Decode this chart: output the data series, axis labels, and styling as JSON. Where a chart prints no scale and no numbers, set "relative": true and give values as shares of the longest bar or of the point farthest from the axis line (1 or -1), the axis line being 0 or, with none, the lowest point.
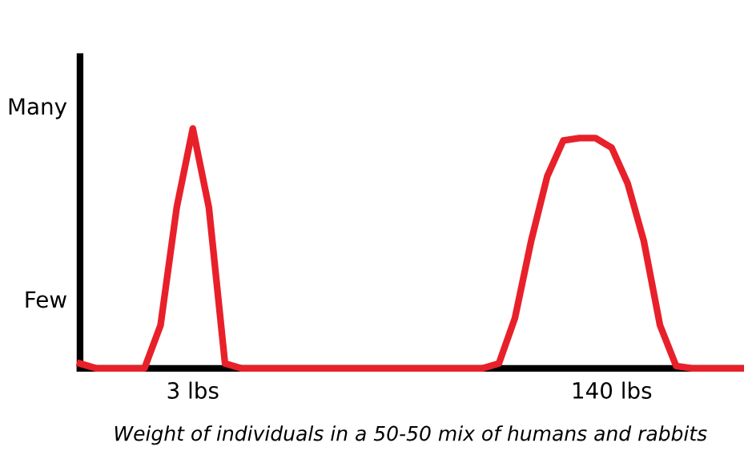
{
  "chart_data": {
    "type": "line",
    "xlabel": "Weight of individuals in a 50-50 mix of humans and rabbits",
    "categories": [
      null,
      null,
      null,
      null,
      null,
      null,
      null,
      "3 lbs",
      null,
      null,
      null,
      null,
      null,
      null,
      null,
      null,
      null,
      null,
      null,
      null,
      null,
      null,
      null,
      null,
      null,
      null,
      null,
      null,
      null,
      null,
      null,
      null,
      null,
      "140 lbs",
      null,
      null,
      null,
      null,
      null,
      null,
      null,
      null
    ],
    "series": [
      {
        "color": "#e8202a",
        "values": [
          0.02,
          0,
          0,
          0,
          0,
          0.18,
          0.67,
          1,
          0.67,
          0.02,
          0,
          0,
          0,
          0,
          0,
          0,
          0,
          0,
          0,
          0,
          0,
          0,
          0,
          0,
          0,
          0,
          0.02,
          0.21,
          0.53,
          0.8,
          0.95,
          0.96,
          0.96,
          0.92,
          0.77,
          0.53,
          0.18,
          0.01,
          0,
          0,
          0,
          0
        ]
      }
    ],
    "relative": true,
    "annotations": [
      "Many",
      "Few"
    ],
    "grid": false,
    "legend": false,
    "marker": "none",
    "line_style": "solid"
  }
}
